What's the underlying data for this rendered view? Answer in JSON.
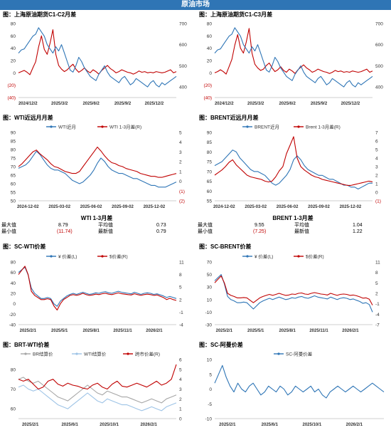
{
  "banner": "原油市场",
  "panels": [
    {
      "id": "p1",
      "title": "图：上海原油期货C1-C2月差"
    },
    {
      "id": "p2",
      "title": "图：上海原油期货C1-C3月差"
    },
    {
      "id": "p3",
      "title": "图：WTI近远月月差"
    },
    {
      "id": "p4",
      "title": "图：BRENT近远月月差"
    },
    {
      "id": "p5",
      "title": "图：SC-WTI价差"
    },
    {
      "id": "p6",
      "title": "图：SC-BRENT价差"
    },
    {
      "id": "p7",
      "title": "图：BRT-WTI价差"
    },
    {
      "id": "p8",
      "title": "图：SC-阿曼价差"
    }
  ],
  "stats": {
    "wti": {
      "caption": "WTI 1-3月差",
      "max_label": "最大值",
      "max_value": "8.79",
      "avg_label": "平均值",
      "avg_value": "0.73",
      "min_label": "最小值",
      "min_value": "(11.74)",
      "latest_label": "最新值",
      "latest_value": "0.79"
    },
    "brent": {
      "caption": "BRENT 1-3月差",
      "max_label": "最大值",
      "max_value": "9.55",
      "avg_label": "平均值",
      "avg_value": "1.04",
      "min_label": "最小值",
      "min_value": "(7.25)",
      "latest_label": "最新值",
      "latest_value": "1.22"
    }
  },
  "chart_data": [
    {
      "type": "line",
      "id": "p1",
      "x_ticks": [
        "2024/12/2",
        "2025/3/2",
        "2025/6/2",
        "2025/9/2",
        "2025/12/2"
      ],
      "y_left_ticks": [
        "80",
        "60",
        "40",
        "20",
        "0",
        "(20)",
        "(40)"
      ],
      "ylim_left": [
        -40,
        80
      ],
      "y_right_ticks": [
        "700",
        "600",
        "500",
        "400"
      ],
      "ylim_right": [
        350,
        700
      ],
      "series": [
        {
          "axis": "left",
          "color": "#c00000",
          "values": [
            0,
            2,
            4,
            1,
            -3,
            8,
            18,
            42,
            60,
            38,
            30,
            48,
            70,
            30,
            12,
            6,
            2,
            5,
            10,
            14,
            6,
            1,
            4,
            8,
            3,
            0,
            5,
            2,
            -2,
            4,
            8,
            12,
            7,
            4,
            0,
            2,
            5,
            3,
            1,
            0,
            -2,
            0,
            3,
            1,
            2,
            0,
            1,
            0,
            2,
            1,
            0,
            1,
            3,
            5,
            0,
            2
          ]
        },
        {
          "axis": "right",
          "color": "#2e75b6",
          "values": [
            560,
            575,
            580,
            600,
            620,
            640,
            650,
            680,
            660,
            640,
            600,
            580,
            560,
            590,
            570,
            600,
            560,
            520,
            480,
            470,
            500,
            540,
            520,
            490,
            470,
            450,
            440,
            430,
            460,
            480,
            500,
            470,
            450,
            440,
            430,
            420,
            440,
            450,
            430,
            410,
            420,
            440,
            430,
            420,
            410,
            400,
            420,
            430,
            410,
            400,
            420,
            410,
            420,
            430,
            440,
            450
          ]
        }
      ]
    },
    {
      "type": "line",
      "id": "p2",
      "x_ticks": [
        "2024/12/2",
        "2025/3/2",
        "2025/6/2",
        "2025/9/2",
        "2025/12/2"
      ],
      "y_left_ticks": [
        "80",
        "60",
        "40",
        "20",
        "0",
        "(20)",
        "(40)"
      ],
      "ylim_left": [
        -40,
        80
      ],
      "y_right_ticks": [
        "700",
        "600",
        "500",
        "400"
      ],
      "ylim_right": [
        350,
        700
      ],
      "series": [
        {
          "axis": "left",
          "color": "#c00000",
          "values": [
            0,
            2,
            5,
            2,
            -2,
            10,
            22,
            45,
            62,
            40,
            32,
            50,
            72,
            32,
            14,
            8,
            4,
            6,
            12,
            16,
            8,
            2,
            5,
            10,
            4,
            1,
            6,
            3,
            -1,
            5,
            9,
            13,
            8,
            5,
            1,
            3,
            6,
            4,
            2,
            1,
            -1,
            1,
            4,
            2,
            3,
            1,
            2,
            1,
            3,
            2,
            1,
            2,
            4,
            6,
            1,
            3
          ]
        },
        {
          "axis": "right",
          "color": "#2e75b6",
          "values": [
            560,
            575,
            580,
            600,
            620,
            640,
            650,
            680,
            660,
            640,
            600,
            580,
            560,
            590,
            570,
            600,
            560,
            520,
            480,
            470,
            500,
            540,
            520,
            490,
            470,
            450,
            440,
            430,
            460,
            480,
            500,
            470,
            450,
            440,
            430,
            420,
            440,
            450,
            430,
            410,
            420,
            440,
            430,
            420,
            410,
            400,
            420,
            430,
            410,
            400,
            420,
            410,
            420,
            430,
            440,
            450
          ]
        }
      ]
    },
    {
      "type": "line",
      "id": "p3",
      "x_ticks": [
        "2024-12-02",
        "2025-03-02",
        "2025-06-02",
        "2025-09-02",
        "2025-12-02"
      ],
      "y_left_ticks": [
        "90",
        "85",
        "80",
        "75",
        "70",
        "65",
        "60",
        "55",
        "50"
      ],
      "ylim_left": [
        50,
        90
      ],
      "y_right_ticks": [
        "5",
        "4",
        "3",
        "2",
        "1",
        "0",
        "(1)",
        "(2)"
      ],
      "ylim_right": [
        -2,
        5
      ],
      "legend": [
        "WTI近月",
        "WTI 1-3月差(R)"
      ],
      "series": [
        {
          "name": "WTI近月",
          "axis": "left",
          "color": "#2e75b6",
          "values": [
            69,
            70,
            71,
            73,
            76,
            79,
            77,
            74,
            71,
            69,
            68,
            68,
            67,
            66,
            64,
            62,
            61,
            60,
            61,
            63,
            65,
            68,
            72,
            75,
            73,
            70,
            68,
            67,
            66,
            66,
            65,
            64,
            63,
            63,
            62,
            61,
            60,
            59,
            59,
            58,
            58,
            58,
            59,
            60,
            61
          ]
        },
        {
          "name": "WTI 1-3月差(R)",
          "axis": "right",
          "color": "#c00000",
          "values": [
            1.5,
            1.8,
            2.2,
            2.6,
            3.0,
            3.2,
            2.8,
            2.5,
            2.2,
            1.8,
            1.5,
            1.4,
            1.2,
            1.0,
            0.9,
            0.8,
            0.8,
            1.0,
            1.5,
            2.0,
            2.5,
            3.0,
            3.5,
            3.1,
            2.6,
            2.2,
            1.9,
            1.8,
            1.6,
            1.5,
            1.3,
            1.2,
            1.1,
            1.0,
            0.8,
            0.7,
            0.6,
            0.5,
            0.5,
            0.4,
            0.4,
            0.5,
            0.6,
            0.7,
            0.79
          ]
        }
      ]
    },
    {
      "type": "line",
      "id": "p4",
      "x_ticks": [
        "2024-12-02",
        "2025-03-02",
        "2025-06-02",
        "2025-09-02",
        "2025-12-02"
      ],
      "y_left_ticks": [
        "90",
        "85",
        "80",
        "75",
        "70",
        "65",
        "60",
        "55"
      ],
      "ylim_left": [
        55,
        90
      ],
      "y_right_ticks": [
        "7",
        "6",
        "5",
        "4",
        "3",
        "2",
        "1",
        "0",
        "(1)"
      ],
      "ylim_right": [
        -1,
        7
      ],
      "legend": [
        "BRENT近月",
        "Brent 1-3月差(R)"
      ],
      "series": [
        {
          "name": "BRENT近月",
          "axis": "left",
          "color": "#2e75b6",
          "values": [
            73,
            74,
            75,
            77,
            79,
            81,
            80,
            77,
            75,
            73,
            71,
            70,
            70,
            69,
            68,
            66,
            64,
            63,
            64,
            66,
            68,
            71,
            76,
            78,
            76,
            73,
            71,
            70,
            69,
            68,
            68,
            67,
            66,
            66,
            65,
            64,
            63,
            63,
            62,
            62,
            61,
            62,
            63,
            64,
            64
          ]
        },
        {
          "name": "Brent 1-3月差(R)",
          "axis": "right",
          "color": "#c00000",
          "values": [
            2.0,
            2.3,
            2.6,
            3.0,
            3.5,
            3.8,
            3.2,
            2.8,
            2.4,
            2.0,
            1.8,
            1.7,
            1.6,
            1.5,
            1.3,
            1.2,
            1.3,
            1.8,
            2.5,
            3.0,
            4.5,
            5.5,
            6.5,
            4.0,
            3.0,
            2.6,
            2.3,
            2.0,
            1.8,
            1.7,
            1.5,
            1.4,
            1.3,
            1.2,
            1.1,
            1.0,
            0.9,
            0.8,
            0.8,
            0.9,
            1.0,
            1.1,
            1.2,
            1.3,
            1.22
          ]
        }
      ]
    },
    {
      "type": "line",
      "id": "p5",
      "x_ticks": [
        "2025/2/1",
        "2025/5/1",
        "2025/8/1",
        "2025/11/1",
        "2026/2/1"
      ],
      "y_left_ticks": [
        "80",
        "60",
        "40",
        "20",
        "0",
        "-20",
        "-40"
      ],
      "ylim_left": [
        -40,
        80
      ],
      "y_right_ticks": [
        "11",
        "8",
        "5",
        "2",
        "-1",
        "-4"
      ],
      "ylim_right": [
        -4,
        11
      ],
      "legend": [
        "¥ 价差(L)",
        "$价差(R)"
      ],
      "series": [
        {
          "name": "¥ 价差(L)",
          "axis": "left",
          "color": "#2e75b6",
          "values": [
            60,
            65,
            70,
            55,
            30,
            20,
            15,
            10,
            10,
            12,
            10,
            0,
            -5,
            5,
            10,
            15,
            18,
            20,
            18,
            20,
            22,
            20,
            18,
            19,
            21,
            20,
            22,
            23,
            21,
            20,
            22,
            24,
            22,
            21,
            20,
            19,
            22,
            20,
            18,
            20,
            21,
            20,
            18,
            19,
            17,
            15,
            12,
            14,
            12,
            10
          ]
        },
        {
          "name": "$价差(R)",
          "axis": "right",
          "color": "#c00000",
          "values": [
            8,
            9,
            10,
            8,
            4,
            3,
            2.5,
            2,
            2,
            2.2,
            2,
            0.5,
            -0.5,
            1,
            2,
            2.5,
            3,
            3.2,
            3,
            3.2,
            3.5,
            3.2,
            3,
            3.1,
            3.3,
            3.2,
            3.4,
            3.5,
            3.3,
            3.2,
            3.4,
            3.6,
            3.4,
            3.3,
            3.2,
            3.1,
            3.4,
            3.2,
            3,
            3.2,
            3.3,
            3.2,
            3,
            3.1,
            2.8,
            2.5,
            2,
            2.3,
            2,
            1.8
          ]
        }
      ]
    },
    {
      "type": "line",
      "id": "p6",
      "x_ticks": [
        "2025/2/1",
        "2025/5/1",
        "2025/8/1",
        "2025/11/1",
        "2026/2/1"
      ],
      "y_left_ticks": [
        "70",
        "50",
        "30",
        "10",
        "-10",
        "-30"
      ],
      "ylim_left": [
        -30,
        70
      ],
      "y_right_ticks": [
        "11",
        "8",
        "5",
        "2",
        "-1",
        "-4",
        "-7"
      ],
      "ylim_right": [
        -7,
        11
      ],
      "legend": [
        "¥ 价差(L)",
        "$价差(R)"
      ],
      "series": [
        {
          "name": "¥ 价差(L)",
          "axis": "left",
          "color": "#2e75b6",
          "values": [
            40,
            45,
            50,
            35,
            15,
            10,
            8,
            5,
            5,
            6,
            5,
            0,
            -5,
            0,
            5,
            8,
            10,
            12,
            10,
            12,
            14,
            12,
            10,
            11,
            13,
            12,
            14,
            15,
            13,
            12,
            14,
            16,
            14,
            13,
            12,
            11,
            14,
            12,
            10,
            12,
            13,
            12,
            10,
            11,
            9,
            7,
            4,
            5,
            2,
            -10
          ]
        },
        {
          "name": "$价差(R)",
          "axis": "right",
          "color": "#c00000",
          "values": [
            5,
            6,
            7,
            5,
            2,
            1.4,
            1.1,
            0.7,
            0.7,
            0.8,
            0.7,
            0,
            -0.7,
            0,
            0.7,
            1.1,
            1.4,
            1.7,
            1.4,
            1.7,
            2,
            1.7,
            1.4,
            1.5,
            1.8,
            1.7,
            2,
            2.1,
            1.8,
            1.7,
            2,
            2.2,
            2,
            1.8,
            1.7,
            1.5,
            2,
            1.7,
            1.4,
            1.7,
            1.8,
            1.7,
            1.4,
            1.5,
            1.3,
            1,
            0.6,
            0.7,
            0.3,
            -1.4
          ]
        }
      ]
    },
    {
      "type": "line",
      "id": "p7",
      "x_ticks": [
        "2025/2/1",
        "2025/6/1",
        "2025/10/1",
        "2026/2/1"
      ],
      "y_left_ticks": [
        "80",
        "70",
        "60"
      ],
      "ylim_left": [
        55,
        85
      ],
      "y_right_ticks": [
        "6",
        "5",
        "4",
        "3",
        "2",
        "1",
        "0"
      ],
      "ylim_right": [
        0,
        6
      ],
      "legend": [
        "BR结算价",
        "WTI结算价",
        "跨市价差(R)"
      ],
      "series": [
        {
          "name": "BR结算价",
          "axis": "left",
          "color": "#a6a6a6",
          "values": [
            75,
            76,
            74,
            73,
            74,
            72,
            70,
            68,
            66,
            65,
            64,
            66,
            68,
            70,
            72,
            70,
            68,
            67,
            69,
            68,
            67,
            66,
            66,
            65,
            64,
            63,
            64,
            65,
            64,
            63,
            65,
            66,
            67
          ]
        },
        {
          "name": "WTI结算价",
          "axis": "left",
          "color": "#9dc3e6",
          "values": [
            71,
            72,
            70,
            69,
            70,
            68,
            66,
            64,
            62,
            61,
            60,
            62,
            64,
            66,
            68,
            66,
            64,
            63,
            65,
            64,
            63,
            62,
            62,
            61,
            60,
            59,
            60,
            61,
            60,
            59,
            61,
            62,
            63
          ]
        },
        {
          "name": "跨市价差(R)",
          "axis": "right",
          "color": "#c00000",
          "values": [
            4,
            3.8,
            4,
            3.5,
            3,
            3.2,
            3.8,
            4,
            3.5,
            3.3,
            3.6,
            3.4,
            3.3,
            3.1,
            3,
            3.4,
            3.6,
            3.2,
            3,
            3.5,
            3.8,
            3.3,
            3.2,
            3.4,
            3.6,
            3.4,
            3.2,
            3.5,
            3.8,
            3.4,
            3.6,
            4,
            5.5
          ]
        }
      ]
    },
    {
      "type": "line",
      "id": "p8",
      "x_ticks": [
        "2025/2/1",
        "2025/6/1",
        "2025/10/1",
        "2026/2/1"
      ],
      "y_left_ticks": [
        "10",
        "5",
        "0",
        "-5",
        "-10"
      ],
      "ylim_left": [
        -10,
        10
      ],
      "legend": [
        "SC-阿曼价差"
      ],
      "series": [
        {
          "name": "SC-阿曼价差",
          "axis": "left",
          "color": "#2e75b6",
          "values": [
            2,
            5,
            8,
            4,
            1,
            -1,
            2,
            0,
            -1,
            1,
            2,
            0,
            -2,
            -1,
            1,
            0,
            -1,
            1,
            0,
            -2,
            -1,
            1,
            0,
            -1,
            0,
            1,
            -1,
            0,
            -2,
            -3,
            -1,
            0,
            1,
            0,
            -1,
            0,
            1,
            0,
            -1,
            0,
            1,
            2,
            1,
            0,
            -1
          ]
        }
      ]
    }
  ]
}
